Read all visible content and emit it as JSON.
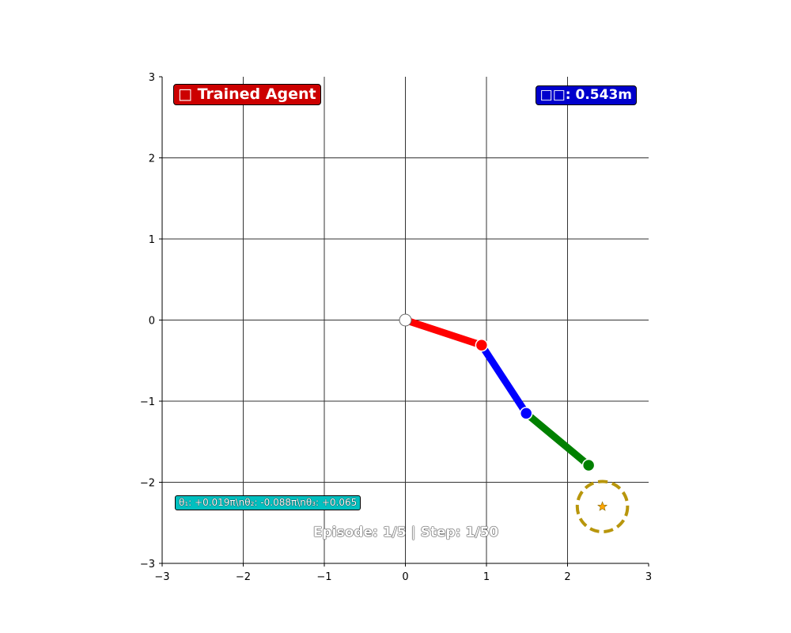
{
  "chart_data": {
    "type": "line",
    "title": "",
    "xlabel": "",
    "ylabel": "",
    "xlim": [
      -3,
      3
    ],
    "ylim": [
      -3,
      3
    ],
    "grid": true,
    "x_ticks": [
      -3,
      -2,
      -1,
      0,
      1,
      2,
      3
    ],
    "y_ticks": [
      -3,
      -2,
      -1,
      0,
      1,
      2,
      3
    ],
    "x_tick_labels": [
      "−3",
      "−2",
      "−1",
      "0",
      "1",
      "2",
      "3"
    ],
    "y_tick_labels": [
      "−3",
      "−2",
      "−1",
      "0",
      "1",
      "2",
      "3"
    ],
    "base": {
      "x": 0.0,
      "y": 0.0
    },
    "joints": [
      {
        "x": 0.94,
        "y": -0.31,
        "color": "#ff0000"
      },
      {
        "x": 1.49,
        "y": -1.15,
        "color": "#0000ff"
      },
      {
        "x": 2.26,
        "y": -1.79,
        "color": "#008000"
      }
    ],
    "links": [
      {
        "from": [
          0.0,
          0.0
        ],
        "to": [
          0.94,
          -0.31
        ],
        "color": "#ff0000"
      },
      {
        "from": [
          0.94,
          -0.31
        ],
        "to": [
          1.49,
          -1.15
        ],
        "color": "#0000ff"
      },
      {
        "from": [
          1.49,
          -1.15
        ],
        "to": [
          2.26,
          -1.79
        ],
        "color": "#008000"
      }
    ],
    "target": {
      "x": 2.43,
      "y": -2.3,
      "radius": 0.31,
      "ring_color": "#b8960c",
      "star_color": "#ffa500"
    }
  },
  "title_badge": {
    "text": "□ Trained Agent",
    "color": "#cc0000"
  },
  "distance_badge": {
    "text": "□□: 0.543m",
    "color": "#0000cc"
  },
  "angle_badge": {
    "text": "θ₁: +0.019π\nθ₂: -0.088π\nθ₃: +0.065",
    "color": "#00c0c0"
  },
  "status_line": {
    "text": "Episode: 1/5 | Step: 1/50"
  }
}
